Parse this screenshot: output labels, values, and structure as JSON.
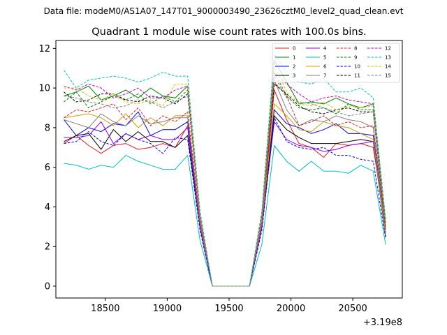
{
  "figure": {
    "suptitle": "Data file: modeM0/AS1A07_147T01_9000003490_23626cztM0_level2_quad_clean.evt"
  },
  "chart_data": {
    "type": "line",
    "title": "Quadrant 1 module wise count rates with 100.0s bins.",
    "xlabel": "",
    "ylabel": "",
    "x_offset_label": "+3.19e8",
    "xlim": [
      18100,
      20900
    ],
    "ylim": [
      -0.6,
      12.4
    ],
    "xticks": [
      18500,
      19000,
      19500,
      20000,
      20500
    ],
    "xtick_labels": [
      "18500",
      "19000",
      "19500",
      "20000",
      "20500"
    ],
    "yticks": [
      0,
      2,
      4,
      6,
      8,
      10,
      12
    ],
    "ytick_labels": [
      "0",
      "2",
      "4",
      "6",
      "8",
      "10",
      "12"
    ],
    "legend_position": "top-right",
    "legend_ncol": 4,
    "x": [
      18165,
      18265,
      18365,
      18465,
      18565,
      18665,
      18765,
      18865,
      18965,
      19065,
      19165,
      19265,
      19365,
      19465,
      19565,
      19665,
      19765,
      19865,
      19965,
      20065,
      20165,
      20265,
      20365,
      20465,
      20565,
      20665,
      20765
    ],
    "series": [
      {
        "name": "0",
        "color": "#e41a1c",
        "dash": "solid",
        "values": [
          7.2,
          7.6,
          7.1,
          6.7,
          7.1,
          7.2,
          6.9,
          7.0,
          7.2,
          7.0,
          8.1,
          3.0,
          0,
          0,
          0,
          0,
          3.0,
          9.9,
          8.4,
          7.2,
          7.0,
          6.5,
          7.2,
          7.1,
          7.2,
          7.0,
          3.1
        ]
      },
      {
        "name": "1",
        "color": "#008000",
        "dash": "solid",
        "values": [
          9.6,
          9.8,
          10.1,
          9.4,
          9.6,
          9.9,
          9.5,
          10.0,
          9.6,
          9.5,
          10.1,
          3.6,
          0,
          0,
          0,
          0,
          3.6,
          11.4,
          10.3,
          9.2,
          9.3,
          9.2,
          9.5,
          9.2,
          9.0,
          9.2,
          3.2
        ]
      },
      {
        "name": "2",
        "color": "#0000ff",
        "dash": "solid",
        "values": [
          8.4,
          7.6,
          8.0,
          7.8,
          8.2,
          8.1,
          8.8,
          7.6,
          7.9,
          7.9,
          8.3,
          3.2,
          0,
          0,
          0,
          0,
          3.2,
          8.9,
          8.2,
          8.0,
          7.7,
          7.9,
          8.2,
          7.7,
          7.7,
          7.6,
          2.7
        ]
      },
      {
        "name": "3",
        "color": "#000000",
        "dash": "solid",
        "values": [
          7.3,
          7.6,
          7.7,
          6.9,
          7.9,
          7.3,
          7.8,
          7.3,
          7.3,
          7.0,
          7.6,
          3.0,
          0,
          0,
          0,
          0,
          3.0,
          8.6,
          7.9,
          7.5,
          7.2,
          7.2,
          7.2,
          7.3,
          7.4,
          7.3,
          2.5
        ]
      },
      {
        "name": "4",
        "color": "#9400d3",
        "dash": "solid",
        "values": [
          7.5,
          7.5,
          7.6,
          8.3,
          7.2,
          7.7,
          7.4,
          7.6,
          7.4,
          7.4,
          8.0,
          3.0,
          0,
          0,
          0,
          0,
          3.0,
          8.3,
          7.4,
          7.1,
          7.0,
          6.8,
          6.9,
          7.1,
          7.2,
          7.3,
          2.6
        ]
      },
      {
        "name": "5",
        "color": "#00bfbf",
        "dash": "solid",
        "values": [
          6.2,
          6.1,
          5.9,
          6.1,
          6.0,
          6.6,
          6.3,
          6.1,
          5.9,
          5.9,
          6.6,
          2.3,
          0,
          0,
          0,
          0,
          2.1,
          7.1,
          6.3,
          5.8,
          6.3,
          5.8,
          5.8,
          5.7,
          6.1,
          5.8,
          2.1
        ]
      },
      {
        "name": "6",
        "color": "#c8a000",
        "dash": "solid",
        "values": [
          8.5,
          8.6,
          8.7,
          8.5,
          8.1,
          8.7,
          8.0,
          8.5,
          8.1,
          8.6,
          8.6,
          3.2,
          0,
          0,
          0,
          0,
          3.2,
          9.2,
          8.6,
          7.9,
          7.8,
          8.3,
          8.1,
          8.0,
          7.7,
          7.4,
          2.6
        ]
      },
      {
        "name": "7",
        "color": "#808080",
        "dash": "solid",
        "values": [
          8.4,
          8.2,
          8.0,
          8.7,
          8.3,
          8.1,
          8.6,
          8.2,
          8.3,
          8.5,
          8.5,
          3.2,
          0,
          0,
          0,
          0,
          3.2,
          10.4,
          8.9,
          8.1,
          8.4,
          8.3,
          8.6,
          8.4,
          8.3,
          8.0,
          2.8
        ]
      },
      {
        "name": "8",
        "color": "#e41a1c",
        "dash": "dashed",
        "values": [
          8.5,
          8.9,
          8.8,
          9.0,
          9.2,
          8.4,
          9.0,
          8.1,
          8.6,
          8.3,
          8.8,
          3.3,
          0,
          0,
          0,
          0,
          3.3,
          10.3,
          9.6,
          8.1,
          8.3,
          8.6,
          8.1,
          8.3,
          8.0,
          8.1,
          3.0
        ]
      },
      {
        "name": "9",
        "color": "#008000",
        "dash": "dashed",
        "values": [
          9.3,
          9.8,
          9.0,
          9.3,
          9.6,
          9.4,
          9.7,
          9.2,
          9.6,
          9.3,
          9.9,
          3.5,
          0,
          0,
          0,
          0,
          3.5,
          10.8,
          9.6,
          9.0,
          8.9,
          9.0,
          8.7,
          9.2,
          8.9,
          8.9,
          3.1
        ]
      },
      {
        "name": "10",
        "color": "#0000ff",
        "dash": "dashed",
        "values": [
          7.2,
          7.3,
          7.8,
          7.3,
          7.1,
          7.7,
          7.4,
          7.2,
          6.7,
          7.5,
          7.4,
          2.8,
          0,
          0,
          0,
          0,
          2.8,
          8.5,
          7.3,
          7.0,
          6.9,
          7.0,
          6.6,
          6.6,
          6.4,
          6.3,
          2.4
        ]
      },
      {
        "name": "11",
        "color": "#000000",
        "dash": "dashed",
        "values": [
          9.8,
          9.3,
          9.4,
          9.7,
          9.7,
          9.4,
          9.3,
          9.6,
          9.5,
          9.2,
          9.7,
          3.5,
          0,
          0,
          0,
          0,
          3.5,
          10.2,
          9.7,
          9.1,
          8.8,
          8.7,
          8.9,
          9.0,
          8.8,
          8.8,
          2.9
        ]
      },
      {
        "name": "12",
        "color": "#c800c8",
        "dash": "dashed",
        "values": [
          10.1,
          9.9,
          10.2,
          10.0,
          9.5,
          9.7,
          10.0,
          9.5,
          9.5,
          9.9,
          10.1,
          3.6,
          0,
          0,
          0,
          0,
          3.6,
          10.8,
          10.2,
          9.7,
          9.3,
          9.5,
          9.6,
          9.4,
          9.3,
          9.2,
          3.2
        ]
      },
      {
        "name": "13",
        "color": "#00bfbf",
        "dash": "dashed",
        "values": [
          10.9,
          10.0,
          10.4,
          10.5,
          10.6,
          10.5,
          10.3,
          10.5,
          10.8,
          10.6,
          10.6,
          3.8,
          0,
          0,
          0,
          0,
          3.8,
          11.7,
          10.8,
          10.3,
          10.2,
          10.5,
          9.8,
          9.8,
          10.0,
          9.5,
          3.4
        ]
      },
      {
        "name": "14",
        "color": "#c8c800",
        "dash": "dashed",
        "values": [
          10.0,
          10.0,
          9.6,
          9.4,
          9.7,
          9.3,
          9.2,
          9.4,
          9.1,
          10.2,
          10.2,
          3.6,
          0,
          0,
          0,
          0,
          3.6,
          11.2,
          9.8,
          9.2,
          9.1,
          9.3,
          8.9,
          9.1,
          9.0,
          9.1,
          3.1
        ]
      },
      {
        "name": "15",
        "color": "#808080",
        "dash": "dashed",
        "values": [
          9.6,
          9.5,
          9.3,
          9.2,
          9.0,
          9.1,
          9.4,
          9.3,
          9.0,
          9.3,
          9.6,
          3.4,
          0,
          0,
          0,
          0,
          3.4,
          10.6,
          9.5,
          9.3,
          9.2,
          9.0,
          8.8,
          8.6,
          8.7,
          8.8,
          3.0
        ]
      }
    ]
  }
}
